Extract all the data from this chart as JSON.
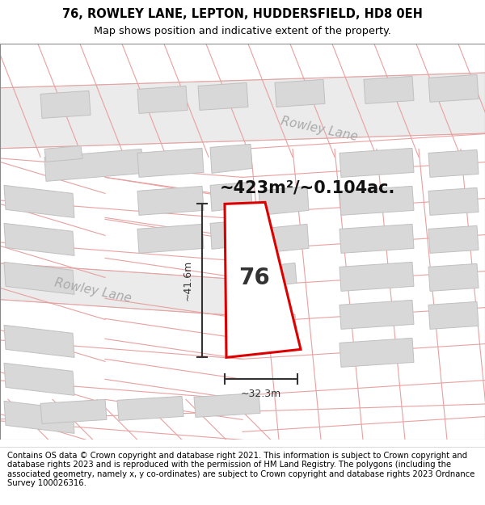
{
  "title_line1": "76, ROWLEY LANE, LEPTON, HUDDERSFIELD, HD8 0EH",
  "title_line2": "Map shows position and indicative extent of the property.",
  "footer_text": "Contains OS data © Crown copyright and database right 2021. This information is subject to Crown copyright and database rights 2023 and is reproduced with the permission of HM Land Registry. The polygons (including the associated geometry, namely x, y co-ordinates) are subject to Crown copyright and database rights 2023 Ordnance Survey 100026316.",
  "area_label": "~423m²/~0.104ac.",
  "number_label": "76",
  "dim_width_label": "~32.3m",
  "dim_height_label": "~41.6m",
  "road_label_upper": "Rowley Lane",
  "road_label_lower": "Rowley Lane",
  "map_bg": "#ffffff",
  "road_band_color": "#ebebeb",
  "plot_outline_color": "#dd0000",
  "plot_fill_color": "#ffffff",
  "building_fill": "#d8d8d8",
  "building_outline": "#c0c0c0",
  "pink_line_color": "#e8a0a0",
  "dim_line_color": "#333333",
  "road_label_color": "#aaaaaa",
  "title_fontsize": 10.5,
  "subtitle_fontsize": 9.2,
  "footer_fontsize": 7.2,
  "area_fontsize": 15,
  "number_fontsize": 20,
  "road_label_fontsize": 11
}
